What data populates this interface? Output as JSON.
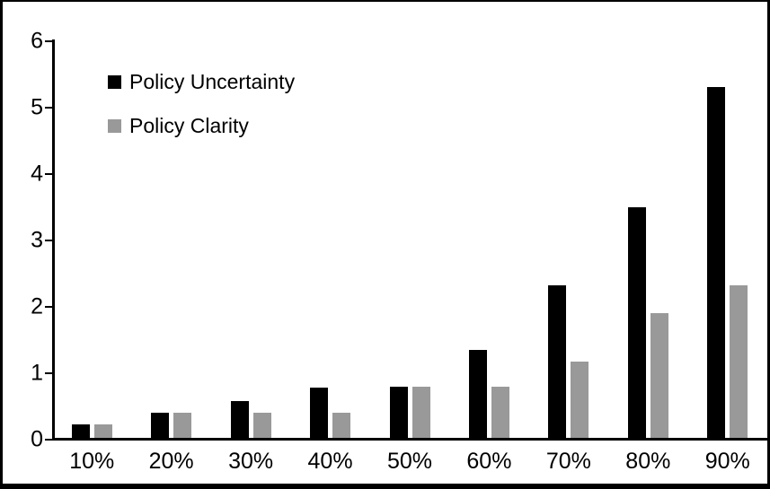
{
  "chart_data": {
    "type": "bar",
    "title": "",
    "xlabel": "",
    "ylabel": "",
    "categories": [
      "10%",
      "20%",
      "30%",
      "40%",
      "50%",
      "60%",
      "70%",
      "80%",
      "90%"
    ],
    "series": [
      {
        "name": "Policy Uncertainty",
        "color": "#000000",
        "values": [
          0.2,
          0.38,
          0.55,
          0.75,
          0.77,
          1.32,
          2.3,
          3.47,
          5.28
        ]
      },
      {
        "name": "Policy Clarity",
        "color": "#999999",
        "values": [
          0.2,
          0.38,
          0.38,
          0.38,
          0.77,
          0.77,
          1.15,
          1.88,
          2.3
        ]
      }
    ],
    "ylim": [
      0,
      6
    ],
    "yticks": [
      "0",
      "1",
      "2",
      "3",
      "4",
      "5",
      "6"
    ],
    "grid": false,
    "legend_position": "top-left",
    "axis_color": "#000000",
    "background_color": "#ffffff"
  }
}
